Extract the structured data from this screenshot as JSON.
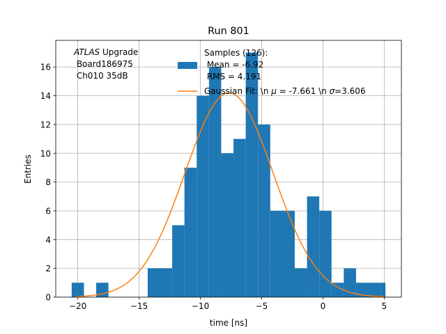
{
  "chart_data": {
    "type": "bar",
    "title": "Run 801",
    "xlabel": "time [ns]",
    "ylabel": "Entries",
    "xlim": [
      -21.8,
      6.4
    ],
    "ylim": [
      0,
      17.85
    ],
    "grid": true,
    "xticks": [
      -20,
      -15,
      -10,
      -5,
      0,
      5
    ],
    "xtick_labels": [
      "−20",
      "−15",
      "−10",
      "−5",
      "0",
      "5"
    ],
    "yticks": [
      0,
      2,
      4,
      6,
      8,
      10,
      12,
      14,
      16
    ],
    "ytick_labels": [
      "0",
      "2",
      "4",
      "6",
      "8",
      "10",
      "12",
      "14",
      "16"
    ],
    "histogram": {
      "name": "Samples",
      "color": "#1f77b4",
      "bins": [
        {
          "x0": -20.5,
          "x1": -19.5,
          "count": 1
        },
        {
          "x0": -18.5,
          "x1": -17.5,
          "count": 1
        },
        {
          "x0": -14.3,
          "x1": -12.3,
          "count": 2
        },
        {
          "x0": -12.3,
          "x1": -11.3,
          "count": 5
        },
        {
          "x0": -11.3,
          "x1": -10.3,
          "count": 9
        },
        {
          "x0": -10.3,
          "x1": -9.3,
          "count": 14
        },
        {
          "x0": -9.3,
          "x1": -8.3,
          "count": 16
        },
        {
          "x0": -8.3,
          "x1": -7.3,
          "count": 10
        },
        {
          "x0": -7.3,
          "x1": -6.3,
          "count": 11
        },
        {
          "x0": -6.3,
          "x1": -5.3,
          "count": 17
        },
        {
          "x0": -5.3,
          "x1": -4.3,
          "count": 12
        },
        {
          "x0": -4.3,
          "x1": -2.3,
          "count": 6
        },
        {
          "x0": -2.3,
          "x1": -1.3,
          "count": 2
        },
        {
          "x0": -1.3,
          "x1": -0.3,
          "count": 7
        },
        {
          "x0": -0.3,
          "x1": 0.7,
          "count": 6
        },
        {
          "x0": 0.7,
          "x1": 1.7,
          "count": 1
        },
        {
          "x0": 1.7,
          "x1": 2.7,
          "count": 2
        },
        {
          "x0": 2.7,
          "x1": 3.7,
          "count": 1
        },
        {
          "x0": 3.7,
          "x1": 4.7,
          "count": 1
        },
        {
          "x0": 4.7,
          "x1": 5.1,
          "count": 1
        }
      ]
    },
    "fit": {
      "name": "Gaussian Fit",
      "color": "#ff7f0e",
      "mu": -7.661,
      "sigma": 3.606,
      "amplitude": 14.2,
      "x_range": [
        -20.2,
        5.0
      ]
    },
    "annotation": {
      "italic": "ATLAS",
      "line1_rest": " Upgrade",
      "line2": " Board186975",
      "line3": " Ch010 35dB"
    },
    "legend": {
      "position": "top-right",
      "samples_title": "Samples (126):",
      "samples_mean": " Mean = -6.92",
      "samples_rms": " RMS = 4.191",
      "fit_prefix": "Gaussian Fit: \\n ",
      "fit_mu_symbol": "μ",
      "fit_mid": " = -7.661 \\n ",
      "fit_sigma_symbol": "σ",
      "fit_suffix": "=3.606"
    }
  }
}
